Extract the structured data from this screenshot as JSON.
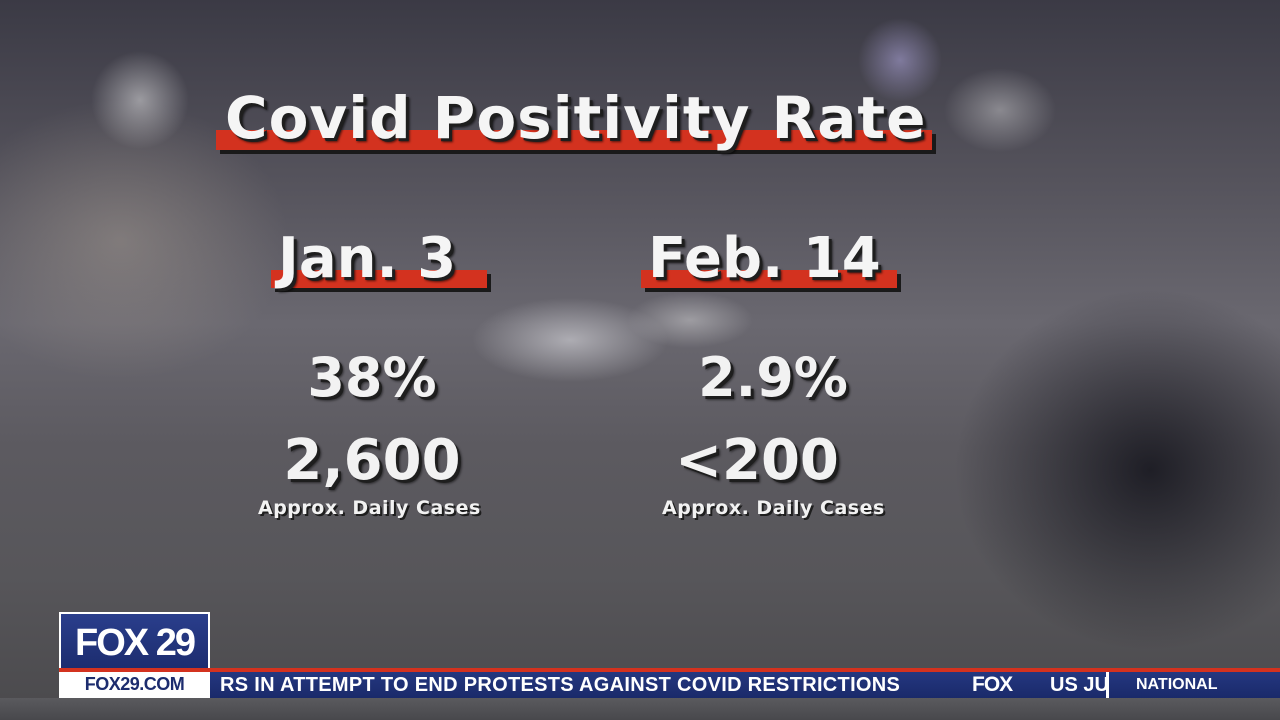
{
  "graphic": {
    "title": "Covid Positivity Rate",
    "columns": [
      {
        "date": "Jan. 3",
        "positivity": "38%",
        "cases": "2,600",
        "cases_label": "Approx. Daily Cases"
      },
      {
        "date": "Feb. 14",
        "positivity": "2.9%",
        "cases": "<200",
        "cases_label": "Approx. Daily Cases"
      }
    ]
  },
  "lower_third": {
    "logo": "FOX 29",
    "url": "FOX29.COM",
    "ticker_text": "RS IN ATTEMPT TO END PROTESTS AGAINST COVID RESTRICTIONS",
    "ticker_brand": "FOX",
    "ticker_next": "US JU",
    "ticker_section": "NATIONAL"
  },
  "colors": {
    "accent_red": "#d3321f",
    "brand_blue": "#1c2c6e",
    "text_white": "#f5f5f5"
  }
}
